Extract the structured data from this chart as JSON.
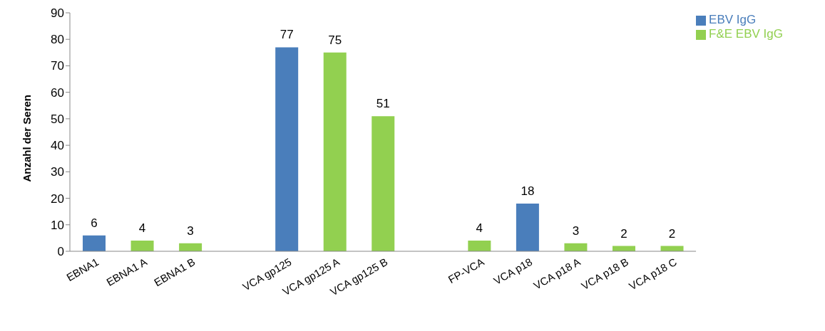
{
  "chart_data": {
    "type": "bar",
    "ylabel": "Anzahl der Seren",
    "categories": [
      "EBNA1",
      "EBNA1 A",
      "EBNA1 B",
      null,
      "VCA gp125",
      "VCA gp125 A",
      "VCA gp125 B",
      null,
      "FP-VCA",
      "VCA p18",
      "VCA p18 A",
      "VCA p18 B",
      "VCA p18 C"
    ],
    "series": [
      {
        "name": "EBV IgG",
        "color": "#4a7ebb",
        "values": [
          6,
          null,
          null,
          null,
          77,
          null,
          null,
          null,
          null,
          18,
          null,
          null,
          null
        ]
      },
      {
        "name": "F&E EBV IgG",
        "color": "#92d050",
        "values": [
          null,
          4,
          3,
          null,
          null,
          75,
          51,
          null,
          4,
          null,
          3,
          2,
          2
        ]
      }
    ],
    "stacked": true,
    "ylim": [
      0,
      90
    ],
    "yticks": [
      0,
      10,
      20,
      30,
      40,
      50,
      60,
      70,
      80,
      90
    ],
    "grid": false,
    "legend": "top right",
    "data_labels": true
  }
}
